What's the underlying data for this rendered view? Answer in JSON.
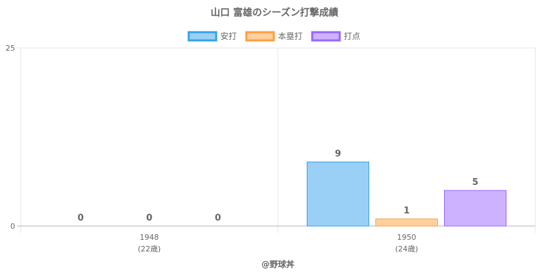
{
  "chart_data": {
    "type": "bar",
    "title": "山口 富雄のシーズン打撃成績",
    "categories": [
      {
        "year": "1948",
        "age": "(22歳)"
      },
      {
        "year": "1950",
        "age": "(24歳)"
      }
    ],
    "series": [
      {
        "name": "安打",
        "values": [
          0,
          9
        ],
        "fill": "#9ad0f5",
        "stroke": "#36a2eb"
      },
      {
        "name": "本塁打",
        "values": [
          0,
          1
        ],
        "fill": "#ffcf9f",
        "stroke": "#ff9f40"
      },
      {
        "name": "打点",
        "values": [
          0,
          5
        ],
        "fill": "#ccb2ff",
        "stroke": "#9966ff"
      }
    ],
    "ylim": [
      0,
      25
    ],
    "yticks": [
      "0",
      "25"
    ],
    "grid": true,
    "legend_position": "top"
  },
  "credit": "@野球丼"
}
